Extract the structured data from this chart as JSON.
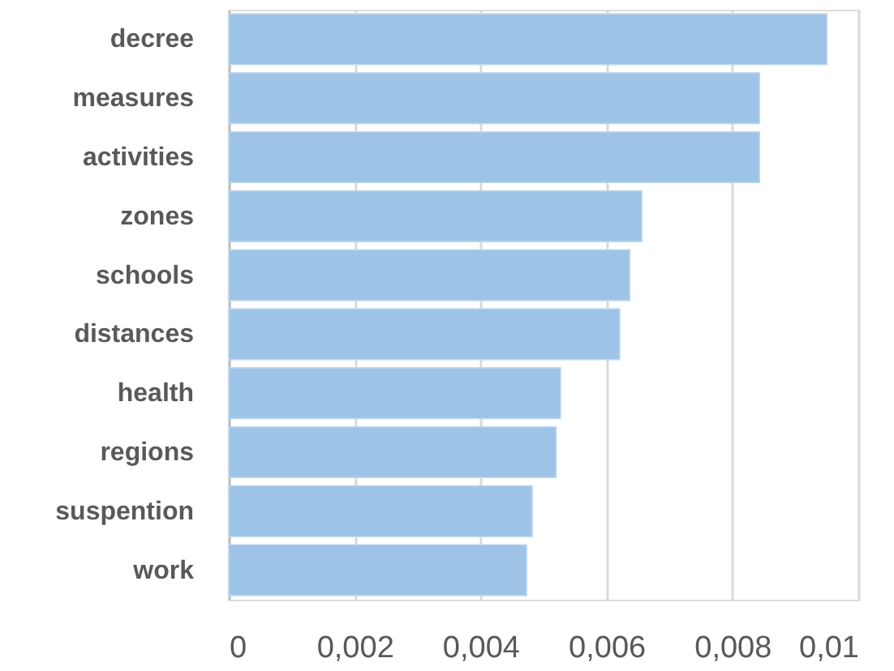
{
  "chart_data": {
    "type": "bar",
    "orientation": "horizontal",
    "categories": [
      "decree",
      "measures",
      "activities",
      "zones",
      "schools",
      "distances",
      "health",
      "regions",
      "suspention",
      "work"
    ],
    "values": [
      0.0095,
      0.00843,
      0.00843,
      0.00656,
      0.00637,
      0.00621,
      0.00527,
      0.0052,
      0.00482,
      0.00473
    ],
    "color": "#9dc3e6",
    "xlim": [
      0,
      0.01
    ],
    "xticks": [
      0,
      {
        "value": 0.002,
        "label": "0,002"
      },
      {
        "value": 0.004,
        "label": "0,004"
      },
      {
        "value": 0.006,
        "label": "0,006"
      },
      {
        "value": 0.008,
        "label": "0,008"
      },
      {
        "value": 0.01,
        "label": "0,01"
      }
    ],
    "grid": "x"
  }
}
